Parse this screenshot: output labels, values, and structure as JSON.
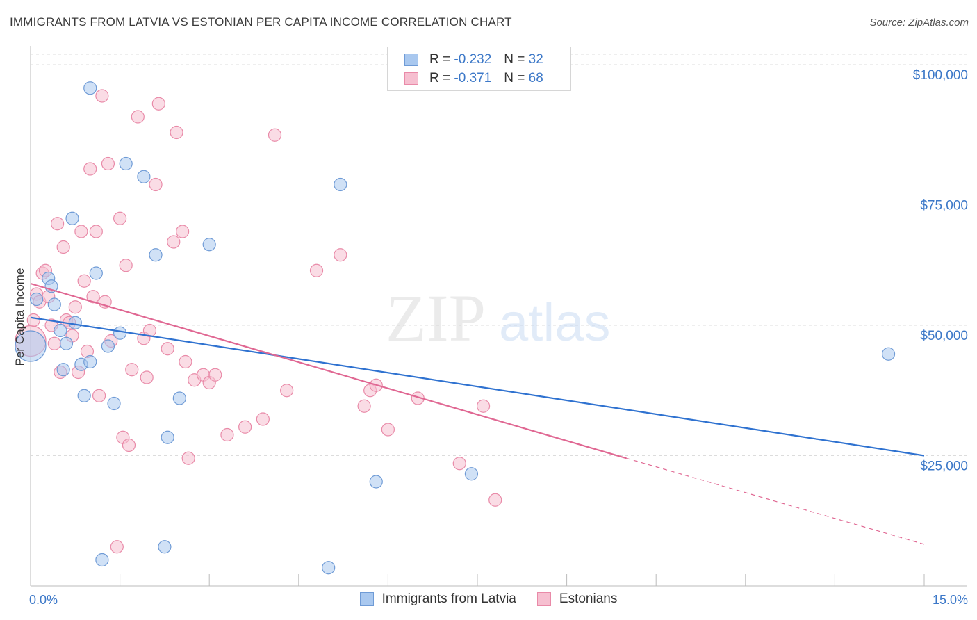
{
  "header": {
    "title": "IMMIGRANTS FROM LATVIA VS ESTONIAN PER CAPITA INCOME CORRELATION CHART",
    "source": "Source: ZipAtlas.com"
  },
  "watermark": {
    "zip": "ZIP",
    "atlas": "atlas"
  },
  "legend": {
    "rows": [
      {
        "r_label": "R =",
        "r_value": "-0.232",
        "n_label": "N =",
        "n_value": "32"
      },
      {
        "r_label": "R =",
        "r_value": "-0.371",
        "n_label": "N =",
        "n_value": "68"
      }
    ]
  },
  "bottom_legend": [
    "Immigrants from Latvia",
    "Estonians"
  ],
  "colors": {
    "blue_fill": "#a9c8ef",
    "blue_stroke": "#6f9bd6",
    "blue_line": "#2f72d0",
    "pink_fill": "#f6bfd0",
    "pink_stroke": "#e98aa8",
    "pink_line": "#e06893",
    "accent_text": "#3c78c8"
  },
  "chart_data": {
    "type": "scatter",
    "title": "IMMIGRANTS FROM LATVIA VS ESTONIAN PER CAPITA INCOME CORRELATION CHART",
    "xlabel": "",
    "ylabel": "Per Capita Income",
    "xlim": [
      0,
      15
    ],
    "ylim": [
      0,
      102000
    ],
    "x_tick_labels": [
      "0.0%",
      "15.0%"
    ],
    "y_ticks": [
      25000,
      50000,
      75000,
      100000
    ],
    "y_tick_labels": [
      "$25,000",
      "$50,000",
      "$75,000",
      "$100,000"
    ],
    "grid": true,
    "legend_position": "top-center",
    "series": [
      {
        "name": "Immigrants from Latvia",
        "color": "#a9c8ef",
        "points": [
          [
            0.0,
            46000,
            1
          ],
          [
            0.1,
            55000,
            0
          ],
          [
            0.3,
            59000,
            0
          ],
          [
            0.35,
            57500,
            0
          ],
          [
            0.4,
            54000,
            0
          ],
          [
            0.5,
            49000,
            0
          ],
          [
            0.55,
            41500,
            0
          ],
          [
            0.6,
            46500,
            0
          ],
          [
            0.7,
            70500,
            0
          ],
          [
            0.75,
            50500,
            0
          ],
          [
            0.85,
            42500,
            0
          ],
          [
            0.9,
            36500,
            0
          ],
          [
            1.0,
            43000,
            0
          ],
          [
            1.0,
            95500,
            0
          ],
          [
            1.1,
            60000,
            0
          ],
          [
            1.2,
            5000,
            0
          ],
          [
            1.3,
            46000,
            0
          ],
          [
            1.4,
            35000,
            0
          ],
          [
            1.5,
            48500,
            0
          ],
          [
            1.6,
            81000,
            0
          ],
          [
            1.9,
            78500,
            0
          ],
          [
            2.1,
            63500,
            0
          ],
          [
            2.25,
            7500,
            0
          ],
          [
            2.3,
            28500,
            0
          ],
          [
            2.5,
            36000,
            0
          ],
          [
            3.0,
            65500,
            0
          ],
          [
            5.0,
            3500,
            0
          ],
          [
            5.2,
            77000,
            0
          ],
          [
            5.8,
            20000,
            0
          ],
          [
            7.4,
            21500,
            0
          ],
          [
            14.4,
            44500,
            0
          ]
        ],
        "trend": {
          "x0": 0.0,
          "y0": 51500,
          "x1": 15.0,
          "y1": 25000
        }
      },
      {
        "name": "Estonians",
        "color": "#f6bfd0",
        "points": [
          [
            0.0,
            47000,
            1
          ],
          [
            0.05,
            51000,
            0
          ],
          [
            0.1,
            56000,
            0
          ],
          [
            0.15,
            54500,
            0
          ],
          [
            0.2,
            60000,
            0
          ],
          [
            0.25,
            60500,
            0
          ],
          [
            0.3,
            55500,
            0
          ],
          [
            0.35,
            50000,
            0
          ],
          [
            0.4,
            46500,
            0
          ],
          [
            0.45,
            69500,
            0
          ],
          [
            0.5,
            41000,
            0
          ],
          [
            0.55,
            65000,
            0
          ],
          [
            0.6,
            51000,
            0
          ],
          [
            0.65,
            50500,
            0
          ],
          [
            0.7,
            48000,
            0
          ],
          [
            0.75,
            53500,
            0
          ],
          [
            0.8,
            41000,
            0
          ],
          [
            0.85,
            68000,
            0
          ],
          [
            0.9,
            58500,
            0
          ],
          [
            0.95,
            45000,
            0
          ],
          [
            1.0,
            80000,
            0
          ],
          [
            1.05,
            55500,
            0
          ],
          [
            1.1,
            68000,
            0
          ],
          [
            1.15,
            36500,
            0
          ],
          [
            1.2,
            94000,
            0
          ],
          [
            1.25,
            54500,
            0
          ],
          [
            1.3,
            81000,
            0
          ],
          [
            1.35,
            47000,
            0
          ],
          [
            1.45,
            7500,
            0
          ],
          [
            1.5,
            70500,
            0
          ],
          [
            1.55,
            28500,
            0
          ],
          [
            1.6,
            61500,
            0
          ],
          [
            1.65,
            27000,
            0
          ],
          [
            1.7,
            41500,
            0
          ],
          [
            1.8,
            90000,
            0
          ],
          [
            1.9,
            47500,
            0
          ],
          [
            1.95,
            40000,
            0
          ],
          [
            2.0,
            49000,
            0
          ],
          [
            2.1,
            77000,
            0
          ],
          [
            2.15,
            92500,
            0
          ],
          [
            2.3,
            45500,
            0
          ],
          [
            2.4,
            66000,
            0
          ],
          [
            2.45,
            87000,
            0
          ],
          [
            2.55,
            68000,
            0
          ],
          [
            2.6,
            43000,
            0
          ],
          [
            2.65,
            24500,
            0
          ],
          [
            2.75,
            39500,
            0
          ],
          [
            2.9,
            40500,
            0
          ],
          [
            3.0,
            39000,
            0
          ],
          [
            3.1,
            40500,
            0
          ],
          [
            3.3,
            29000,
            0
          ],
          [
            3.6,
            30500,
            0
          ],
          [
            3.9,
            32000,
            0
          ],
          [
            4.1,
            86500,
            0
          ],
          [
            4.3,
            37500,
            0
          ],
          [
            4.8,
            60500,
            0
          ],
          [
            5.2,
            63500,
            0
          ],
          [
            5.6,
            34500,
            0
          ],
          [
            5.7,
            37500,
            0
          ],
          [
            5.8,
            38500,
            0
          ],
          [
            6.0,
            30000,
            0
          ],
          [
            6.5,
            36000,
            0
          ],
          [
            7.2,
            23500,
            0
          ],
          [
            7.6,
            34500,
            0
          ],
          [
            7.8,
            16500,
            0
          ]
        ],
        "trend": {
          "x0": 0.0,
          "y0": 58000,
          "x1": 10.0,
          "y1": 24500,
          "dash_to_x": 15.0,
          "dash_to_y": 8000
        }
      }
    ]
  }
}
